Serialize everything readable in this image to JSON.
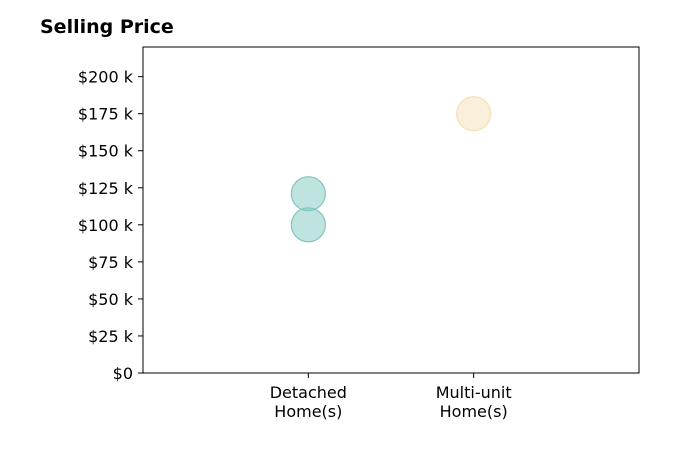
{
  "chart_data": {
    "type": "scatter",
    "title": "Selling Price",
    "xlabel": "",
    "ylabel": "",
    "categories": [
      [
        "Detached",
        "Home(s)"
      ],
      [
        "Multi-unit",
        "Home(s)"
      ]
    ],
    "xlim": [
      -1,
      2
    ],
    "ylim": [
      0,
      220000
    ],
    "yticks": [
      0,
      25000,
      50000,
      75000,
      100000,
      125000,
      150000,
      175000,
      200000
    ],
    "ytick_labels": [
      "$0",
      "$25 k",
      "$50 k",
      "$75 k",
      "$100 k",
      "$125 k",
      "$150 k",
      "$175 k",
      "$200 k"
    ],
    "grid": false,
    "points": [
      {
        "category": 0,
        "y": 100000,
        "color": "#7fc7bf"
      },
      {
        "category": 0,
        "y": 121000,
        "color": "#7fc7bf"
      },
      {
        "category": 1,
        "y": 175000,
        "color": "#f5dfb5"
      }
    ]
  }
}
